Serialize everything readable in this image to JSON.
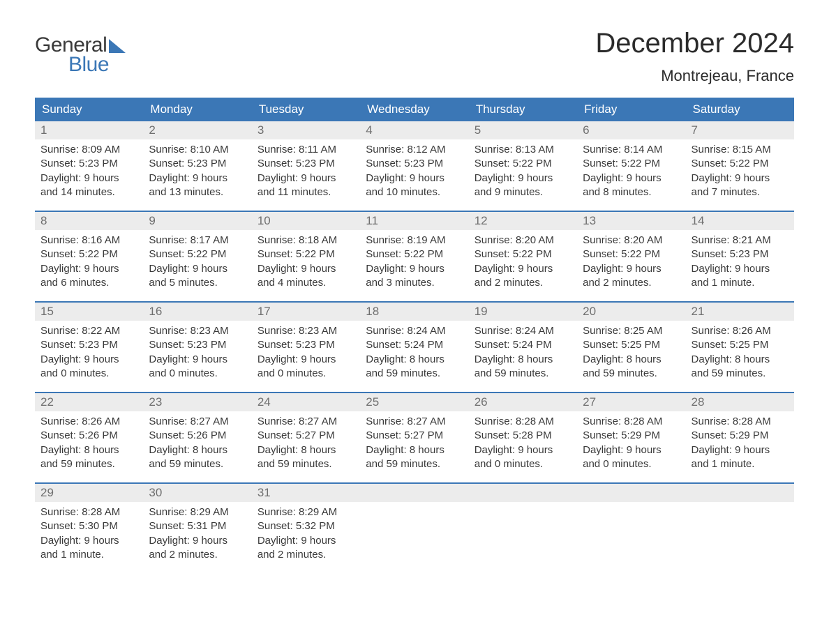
{
  "logo": {
    "text_general": "General",
    "text_blue": "Blue"
  },
  "title": "December 2024",
  "location": "Montrejeau, France",
  "colors": {
    "header_bg": "#3b77b6",
    "header_text": "#ffffff",
    "daynum_bg": "#ececec",
    "daynum_text": "#6f6f6f",
    "body_text": "#3a3a3a",
    "week_border": "#3b77b6"
  },
  "day_labels": [
    "Sunday",
    "Monday",
    "Tuesday",
    "Wednesday",
    "Thursday",
    "Friday",
    "Saturday"
  ],
  "weeks": [
    [
      {
        "n": "1",
        "sunrise": "Sunrise: 8:09 AM",
        "sunset": "Sunset: 5:23 PM",
        "daylight": "Daylight: 9 hours and 14 minutes."
      },
      {
        "n": "2",
        "sunrise": "Sunrise: 8:10 AM",
        "sunset": "Sunset: 5:23 PM",
        "daylight": "Daylight: 9 hours and 13 minutes."
      },
      {
        "n": "3",
        "sunrise": "Sunrise: 8:11 AM",
        "sunset": "Sunset: 5:23 PM",
        "daylight": "Daylight: 9 hours and 11 minutes."
      },
      {
        "n": "4",
        "sunrise": "Sunrise: 8:12 AM",
        "sunset": "Sunset: 5:23 PM",
        "daylight": "Daylight: 9 hours and 10 minutes."
      },
      {
        "n": "5",
        "sunrise": "Sunrise: 8:13 AM",
        "sunset": "Sunset: 5:22 PM",
        "daylight": "Daylight: 9 hours and 9 minutes."
      },
      {
        "n": "6",
        "sunrise": "Sunrise: 8:14 AM",
        "sunset": "Sunset: 5:22 PM",
        "daylight": "Daylight: 9 hours and 8 minutes."
      },
      {
        "n": "7",
        "sunrise": "Sunrise: 8:15 AM",
        "sunset": "Sunset: 5:22 PM",
        "daylight": "Daylight: 9 hours and 7 minutes."
      }
    ],
    [
      {
        "n": "8",
        "sunrise": "Sunrise: 8:16 AM",
        "sunset": "Sunset: 5:22 PM",
        "daylight": "Daylight: 9 hours and 6 minutes."
      },
      {
        "n": "9",
        "sunrise": "Sunrise: 8:17 AM",
        "sunset": "Sunset: 5:22 PM",
        "daylight": "Daylight: 9 hours and 5 minutes."
      },
      {
        "n": "10",
        "sunrise": "Sunrise: 8:18 AM",
        "sunset": "Sunset: 5:22 PM",
        "daylight": "Daylight: 9 hours and 4 minutes."
      },
      {
        "n": "11",
        "sunrise": "Sunrise: 8:19 AM",
        "sunset": "Sunset: 5:22 PM",
        "daylight": "Daylight: 9 hours and 3 minutes."
      },
      {
        "n": "12",
        "sunrise": "Sunrise: 8:20 AM",
        "sunset": "Sunset: 5:22 PM",
        "daylight": "Daylight: 9 hours and 2 minutes."
      },
      {
        "n": "13",
        "sunrise": "Sunrise: 8:20 AM",
        "sunset": "Sunset: 5:22 PM",
        "daylight": "Daylight: 9 hours and 2 minutes."
      },
      {
        "n": "14",
        "sunrise": "Sunrise: 8:21 AM",
        "sunset": "Sunset: 5:23 PM",
        "daylight": "Daylight: 9 hours and 1 minute."
      }
    ],
    [
      {
        "n": "15",
        "sunrise": "Sunrise: 8:22 AM",
        "sunset": "Sunset: 5:23 PM",
        "daylight": "Daylight: 9 hours and 0 minutes."
      },
      {
        "n": "16",
        "sunrise": "Sunrise: 8:23 AM",
        "sunset": "Sunset: 5:23 PM",
        "daylight": "Daylight: 9 hours and 0 minutes."
      },
      {
        "n": "17",
        "sunrise": "Sunrise: 8:23 AM",
        "sunset": "Sunset: 5:23 PM",
        "daylight": "Daylight: 9 hours and 0 minutes."
      },
      {
        "n": "18",
        "sunrise": "Sunrise: 8:24 AM",
        "sunset": "Sunset: 5:24 PM",
        "daylight": "Daylight: 8 hours and 59 minutes."
      },
      {
        "n": "19",
        "sunrise": "Sunrise: 8:24 AM",
        "sunset": "Sunset: 5:24 PM",
        "daylight": "Daylight: 8 hours and 59 minutes."
      },
      {
        "n": "20",
        "sunrise": "Sunrise: 8:25 AM",
        "sunset": "Sunset: 5:25 PM",
        "daylight": "Daylight: 8 hours and 59 minutes."
      },
      {
        "n": "21",
        "sunrise": "Sunrise: 8:26 AM",
        "sunset": "Sunset: 5:25 PM",
        "daylight": "Daylight: 8 hours and 59 minutes."
      }
    ],
    [
      {
        "n": "22",
        "sunrise": "Sunrise: 8:26 AM",
        "sunset": "Sunset: 5:26 PM",
        "daylight": "Daylight: 8 hours and 59 minutes."
      },
      {
        "n": "23",
        "sunrise": "Sunrise: 8:27 AM",
        "sunset": "Sunset: 5:26 PM",
        "daylight": "Daylight: 8 hours and 59 minutes."
      },
      {
        "n": "24",
        "sunrise": "Sunrise: 8:27 AM",
        "sunset": "Sunset: 5:27 PM",
        "daylight": "Daylight: 8 hours and 59 minutes."
      },
      {
        "n": "25",
        "sunrise": "Sunrise: 8:27 AM",
        "sunset": "Sunset: 5:27 PM",
        "daylight": "Daylight: 8 hours and 59 minutes."
      },
      {
        "n": "26",
        "sunrise": "Sunrise: 8:28 AM",
        "sunset": "Sunset: 5:28 PM",
        "daylight": "Daylight: 9 hours and 0 minutes."
      },
      {
        "n": "27",
        "sunrise": "Sunrise: 8:28 AM",
        "sunset": "Sunset: 5:29 PM",
        "daylight": "Daylight: 9 hours and 0 minutes."
      },
      {
        "n": "28",
        "sunrise": "Sunrise: 8:28 AM",
        "sunset": "Sunset: 5:29 PM",
        "daylight": "Daylight: 9 hours and 1 minute."
      }
    ],
    [
      {
        "n": "29",
        "sunrise": "Sunrise: 8:28 AM",
        "sunset": "Sunset: 5:30 PM",
        "daylight": "Daylight: 9 hours and 1 minute."
      },
      {
        "n": "30",
        "sunrise": "Sunrise: 8:29 AM",
        "sunset": "Sunset: 5:31 PM",
        "daylight": "Daylight: 9 hours and 2 minutes."
      },
      {
        "n": "31",
        "sunrise": "Sunrise: 8:29 AM",
        "sunset": "Sunset: 5:32 PM",
        "daylight": "Daylight: 9 hours and 2 minutes."
      },
      {
        "n": "",
        "sunrise": "",
        "sunset": "",
        "daylight": ""
      },
      {
        "n": "",
        "sunrise": "",
        "sunset": "",
        "daylight": ""
      },
      {
        "n": "",
        "sunrise": "",
        "sunset": "",
        "daylight": ""
      },
      {
        "n": "",
        "sunrise": "",
        "sunset": "",
        "daylight": ""
      }
    ]
  ]
}
